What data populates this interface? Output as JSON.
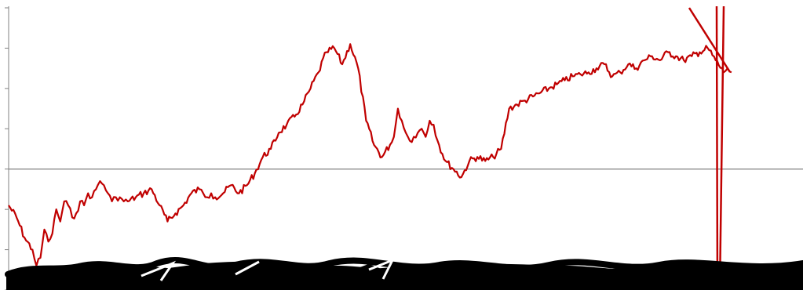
{
  "chart_data": {
    "type": "line",
    "title": "",
    "xlabel": "",
    "ylabel": "",
    "grid": false,
    "legend": "none",
    "ylim": [
      -3,
      4
    ],
    "xlim": [
      0,
      100
    ],
    "zero_line": 0,
    "y_ticks": [
      -3,
      -2,
      -1,
      0,
      1,
      2,
      3,
      4
    ],
    "series": [
      {
        "color": "#c00000",
        "x": [
          0,
          1,
          2,
          3,
          3.5,
          4,
          4.5,
          5,
          5.5,
          6,
          6.5,
          7,
          7.5,
          8,
          8.5,
          9,
          9.5,
          10,
          10.5,
          11,
          11.5,
          12,
          12.5,
          13,
          13.5,
          14,
          14.5,
          15,
          16,
          17,
          18,
          19,
          20,
          21,
          22,
          23,
          24,
          24.5,
          25,
          25.5,
          26,
          27,
          28,
          29,
          30,
          31,
          32,
          33,
          34,
          35,
          36,
          37,
          38,
          39,
          40,
          41,
          42,
          43,
          44,
          45,
          46,
          47,
          48,
          48.5,
          49,
          49.5,
          50,
          50.5,
          51,
          51.5,
          52,
          52.5,
          53,
          53.5,
          54,
          55,
          56,
          57,
          58,
          59,
          60,
          61,
          62,
          63,
          64,
          65,
          66,
          67,
          68,
          69,
          70,
          71,
          72,
          73,
          74,
          75,
          76,
          77,
          78,
          79,
          80,
          81,
          82,
          83,
          84,
          85,
          86,
          87,
          88,
          89,
          90,
          90.5,
          91
        ],
        "y": [
          -0.9,
          -1.2,
          -1.7,
          -2.0,
          -2.4,
          -2.2,
          -1.5,
          -1.8,
          -1.6,
          -1.0,
          -1.3,
          -0.8,
          -0.9,
          -1.2,
          -1.1,
          -0.8,
          -0.9,
          -0.6,
          -0.7,
          -0.5,
          -0.3,
          -0.4,
          -0.6,
          -0.8,
          -0.7,
          -0.7,
          -0.8,
          -0.8,
          -0.7,
          -0.6,
          -0.5,
          -0.9,
          -1.3,
          -1.1,
          -0.9,
          -0.6,
          -0.5,
          -0.6,
          -0.7,
          -0.6,
          -0.7,
          -0.6,
          -0.4,
          -0.6,
          -0.4,
          -0.1,
          0.3,
          0.5,
          0.9,
          1.1,
          1.3,
          1.6,
          2.0,
          2.4,
          2.9,
          3.0,
          2.6,
          3.1,
          2.5,
          1.2,
          0.6,
          0.3,
          0.6,
          0.8,
          1.5,
          1.2,
          0.9,
          0.7,
          0.8,
          0.9,
          1.0,
          0.8,
          1.2,
          1.1,
          0.7,
          0.2,
          0.0,
          -0.2,
          0.2,
          0.3,
          0.2,
          0.3,
          0.5,
          1.5,
          1.6,
          1.7,
          1.8,
          1.9,
          2.0,
          2.1,
          2.2,
          2.3,
          2.35,
          2.4,
          2.5,
          2.6,
          2.3,
          2.4,
          2.6,
          2.5,
          2.7,
          2.8,
          2.7,
          2.9,
          2.8,
          2.7,
          2.8,
          2.9,
          3.0,
          2.7,
          2.4,
          2.5,
          2.4
        ]
      }
    ]
  }
}
